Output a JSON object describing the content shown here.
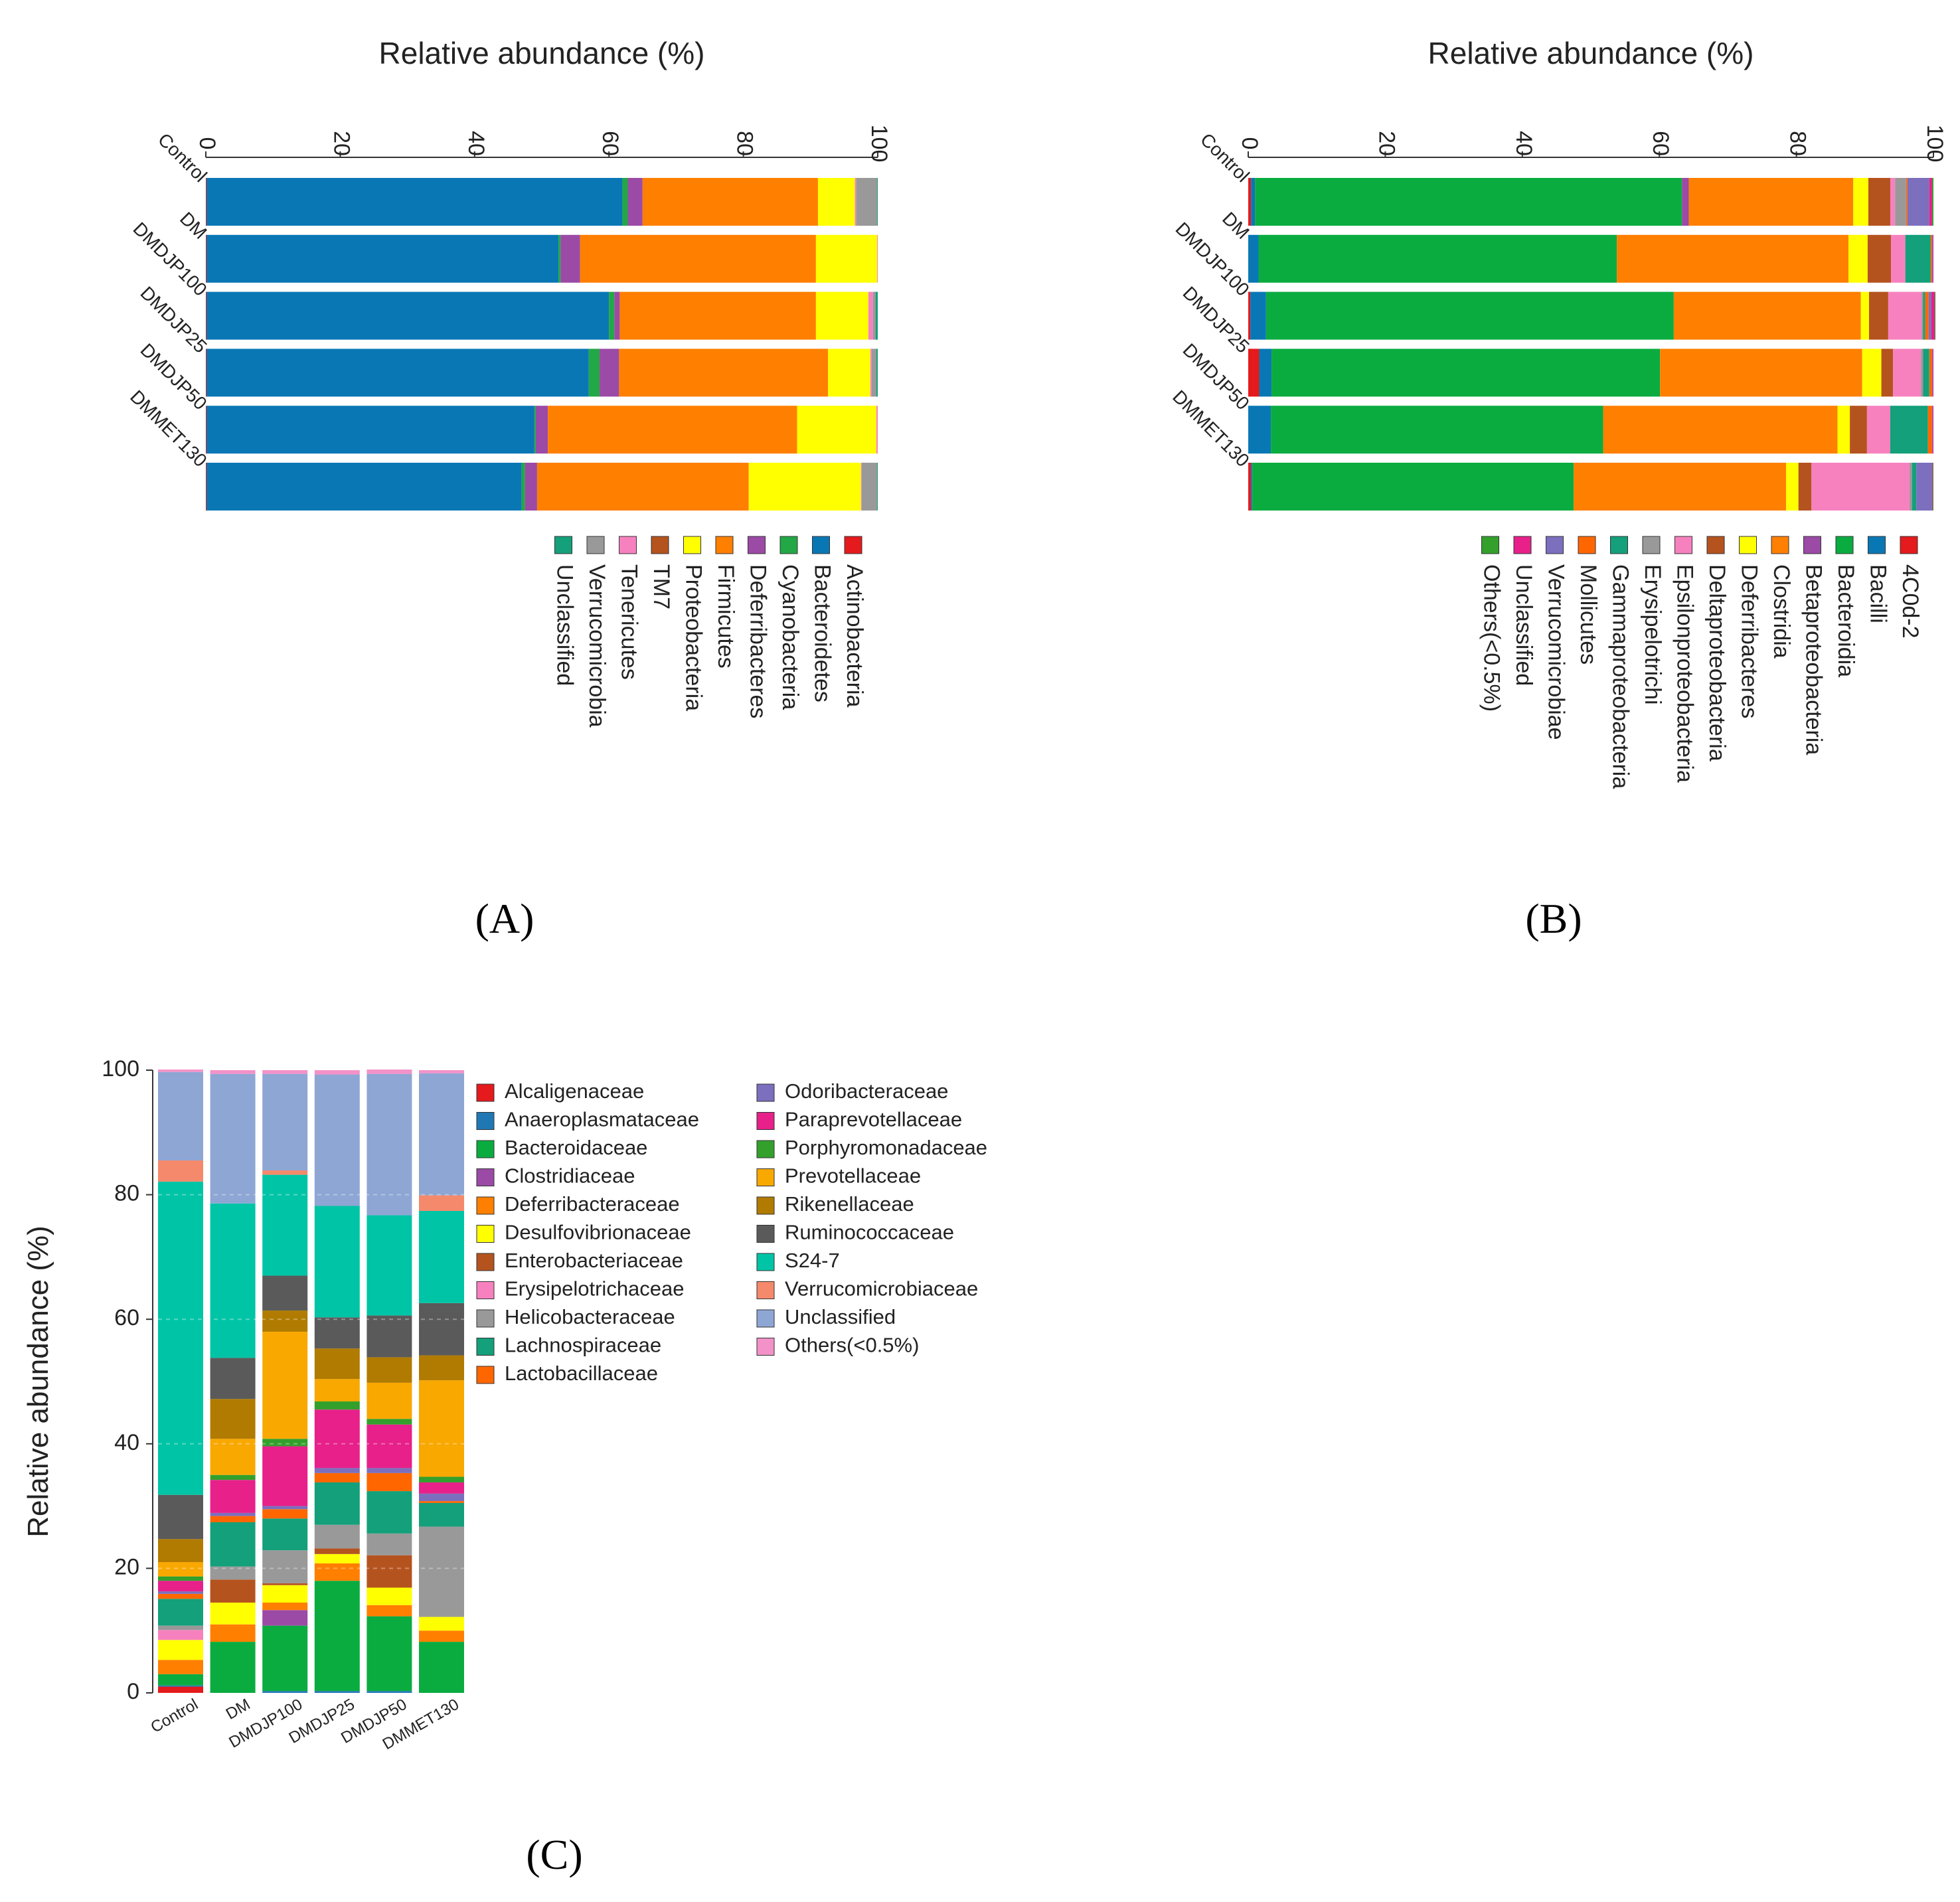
{
  "chart_data": [
    {
      "panel": "A",
      "type": "bar",
      "orientation": "horizontal-stacked",
      "axis_title": "Relative abundance (%)",
      "ticks": [
        "0",
        "20",
        "40",
        "60",
        "80",
        "100"
      ],
      "xlim": [
        0,
        100
      ],
      "categories": [
        "Control",
        "DM",
        "DMDJP100",
        "DMDJP25",
        "DMDJP50",
        "DMMET130"
      ],
      "legend_order": [
        "Actinobacteria",
        "Bacteroidetes",
        "Cyanobacteria",
        "Deferribacteres",
        "Firmicutes",
        "Proteobacteria",
        "TM7",
        "Tenericutes",
        "Verrucomicrobia",
        "Unclassified"
      ],
      "series": [
        {
          "name": "Actinobacteria",
          "color": "#e41a1c",
          "values": [
            0.1,
            0.1,
            0.1,
            0.1,
            0.1,
            0.1
          ]
        },
        {
          "name": "Bacteroidetes",
          "color": "#0a77b5",
          "values": [
            61.9,
            52.4,
            59.9,
            56.9,
            48.8,
            46.9
          ]
        },
        {
          "name": "Cyanobacteria",
          "color": "#22a844",
          "values": [
            0.8,
            0.3,
            0.8,
            1.6,
            0.2,
            0.5
          ]
        },
        {
          "name": "Deferribacteres",
          "color": "#9b4aa6",
          "values": [
            2.2,
            2.9,
            0.8,
            2.9,
            1.8,
            1.8
          ]
        },
        {
          "name": "Firmicutes",
          "color": "#ff7f00",
          "values": [
            26.1,
            35.1,
            29.2,
            31.1,
            37.1,
            31.5
          ]
        },
        {
          "name": "Proteobacteria",
          "color": "#ffff00",
          "values": [
            5.5,
            9.1,
            7.8,
            6.3,
            11.8,
            16.7
          ]
        },
        {
          "name": "TM7",
          "color": "#b5531f",
          "values": [
            0.0,
            0.0,
            0.0,
            0.0,
            0.0,
            0.0
          ]
        },
        {
          "name": "Tenericutes",
          "color": "#f781bf",
          "values": [
            0.2,
            0.1,
            0.7,
            0.2,
            0.2,
            0.1
          ]
        },
        {
          "name": "Verrucomicrobia",
          "color": "#999999",
          "values": [
            3.1,
            0.0,
            0.4,
            0.7,
            0.0,
            2.3
          ]
        },
        {
          "name": "Unclassified",
          "color": "#13a07a",
          "values": [
            0.1,
            0.0,
            0.3,
            0.2,
            0.0,
            0.1
          ]
        }
      ]
    },
    {
      "panel": "B",
      "type": "bar",
      "orientation": "horizontal-stacked",
      "axis_title": "Relative abundance (%)",
      "ticks": [
        "0",
        "20",
        "40",
        "60",
        "80",
        "100"
      ],
      "xlim": [
        0,
        100
      ],
      "categories": [
        "Control",
        "DM",
        "DMDJP100",
        "DMDJP25",
        "DMDJP50",
        "DMMET130"
      ],
      "legend_order": [
        "4C0d-2",
        "Bacilli",
        "Bacteroidia",
        "Betaproteobacteria",
        "Clostridia",
        "Deferribacteres",
        "Deltaproteobacteria",
        "Epsilonproteobacteria",
        "Erysipelotrichi",
        "Gammaproteobacteria",
        "Mollicutes",
        "Verrucomicrobiae",
        "Unclassified",
        "Others(<0.5%)"
      ],
      "series": [
        {
          "name": "4C0d-2",
          "color": "#e41a1c",
          "values": [
            0.4,
            0.0,
            0.3,
            1.6,
            0.0,
            0.4
          ]
        },
        {
          "name": "Bacilli",
          "color": "#0a77b5",
          "values": [
            0.6,
            1.5,
            2.3,
            1.8,
            3.3,
            0.2
          ]
        },
        {
          "name": "Bacteroidia",
          "color": "#0aac40",
          "values": [
            62.3,
            52.3,
            59.5,
            56.7,
            48.5,
            46.9
          ]
        },
        {
          "name": "Betaproteobacteria",
          "color": "#9b4aa6",
          "values": [
            1.0,
            0.0,
            0.0,
            0.0,
            0.0,
            0.0
          ]
        },
        {
          "name": "Clostridia",
          "color": "#ff7f00",
          "values": [
            24.0,
            33.8,
            27.3,
            29.5,
            34.2,
            31.0
          ]
        },
        {
          "name": "Deferribacteres",
          "color": "#ffff00",
          "values": [
            2.2,
            2.8,
            1.2,
            2.8,
            1.8,
            1.8
          ]
        },
        {
          "name": "Deltaproteobacteria",
          "color": "#b5531f",
          "values": [
            3.2,
            3.4,
            2.8,
            1.7,
            2.5,
            1.9
          ]
        },
        {
          "name": "Epsilonproteobacteria",
          "color": "#f781bf",
          "values": [
            0.7,
            2.1,
            4.9,
            4.1,
            3.4,
            14.3
          ]
        },
        {
          "name": "Erysipelotrichi",
          "color": "#999999",
          "values": [
            1.6,
            0.0,
            0.2,
            0.3,
            0.0,
            0.4
          ]
        },
        {
          "name": "Gammaproteobacteria",
          "color": "#13a07a",
          "values": [
            0.0,
            3.7,
            0.3,
            0.9,
            5.5,
            0.6
          ]
        },
        {
          "name": "Mollicutes",
          "color": "#ff6600",
          "values": [
            0.2,
            0.2,
            0.5,
            0.4,
            0.6,
            0.0
          ]
        },
        {
          "name": "Verrucomicrobiae",
          "color": "#7b6fbe",
          "values": [
            3.2,
            0.1,
            0.4,
            0.1,
            0.1,
            2.3
          ]
        },
        {
          "name": "Unclassified",
          "color": "#e7208a",
          "values": [
            0.4,
            0.1,
            0.5,
            0.1,
            0.1,
            0.1
          ]
        },
        {
          "name": "Others(<0.5%)",
          "color": "#33a02c",
          "values": [
            0.2,
            0.0,
            0.1,
            0.0,
            0.0,
            0.1
          ]
        }
      ]
    },
    {
      "panel": "C",
      "type": "bar",
      "orientation": "vertical-stacked",
      "ylabel": "Relative abundance (%)",
      "ticks": [
        "0",
        "20",
        "40",
        "60",
        "80",
        "100"
      ],
      "ylim": [
        0,
        100
      ],
      "categories": [
        "Control",
        "DM",
        "DMDJP100",
        "DMDJP25",
        "DMDJP50",
        "DMMET130"
      ],
      "legend_order": [
        "Alcaligenaceae",
        "Anaeroplasmataceae",
        "Bacteroidaceae",
        "Clostridiaceae",
        "Deferribacteraceae",
        "Desulfovibrionaceae",
        "Enterobacteriaceae",
        "Erysipelotrichaceae",
        "Helicobacteraceae",
        "Lachnospiraceae",
        "Lactobacillaceae",
        "Odoribacteraceae",
        "Paraprevotellaceae",
        "Porphyromonadaceae",
        "Prevotellaceae",
        "Rikenellaceae",
        "Ruminococcaceae",
        "S24-7",
        "Verrucomicrobiaceae",
        "Unclassified",
        "Others(<0.5%)"
      ],
      "series": [
        {
          "name": "Alcaligenaceae",
          "color": "#e41a1c",
          "values": [
            1.0,
            0.0,
            0.0,
            0.0,
            0.0,
            0.0
          ]
        },
        {
          "name": "Anaeroplasmataceae",
          "color": "#1f78b4",
          "values": [
            0.2,
            0.0,
            0.3,
            0.3,
            0.3,
            0.0
          ]
        },
        {
          "name": "Bacteroidaceae",
          "color": "#0aac40",
          "values": [
            1.8,
            8.2,
            10.5,
            17.7,
            12.0,
            8.2
          ]
        },
        {
          "name": "Clostridiaceae",
          "color": "#9b4aa6",
          "values": [
            0.0,
            0.0,
            2.5,
            0.0,
            0.0,
            0.0
          ]
        },
        {
          "name": "Deferribacteraceae",
          "color": "#ff7f00",
          "values": [
            2.3,
            2.8,
            1.2,
            2.8,
            1.8,
            1.8
          ]
        },
        {
          "name": "Desulfovibrionaceae",
          "color": "#ffff00",
          "values": [
            3.2,
            3.5,
            2.8,
            1.5,
            2.8,
            2.2
          ]
        },
        {
          "name": "Enterobacteriaceae",
          "color": "#b5531f",
          "values": [
            0.0,
            3.7,
            0.3,
            0.9,
            5.2,
            0.0
          ]
        },
        {
          "name": "Erysipelotrichaceae",
          "color": "#f781bf",
          "values": [
            1.6,
            0.0,
            0.0,
            0.0,
            0.0,
            0.0
          ]
        },
        {
          "name": "Helicobacteraceae",
          "color": "#999999",
          "values": [
            0.7,
            2.1,
            5.3,
            3.8,
            3.5,
            14.5
          ]
        },
        {
          "name": "Lachnospiraceae",
          "color": "#13a07a",
          "values": [
            4.3,
            7.1,
            5.1,
            6.8,
            6.8,
            3.8
          ]
        },
        {
          "name": "Lactobacillaceae",
          "color": "#ff6600",
          "values": [
            0.8,
            1.0,
            1.5,
            1.5,
            2.9,
            0.3
          ]
        },
        {
          "name": "Odoribacteraceae",
          "color": "#7b6fbe",
          "values": [
            0.4,
            0.5,
            0.5,
            0.8,
            0.8,
            1.2
          ]
        },
        {
          "name": "Paraprevotellaceae",
          "color": "#e7208a",
          "values": [
            1.7,
            5.3,
            9.6,
            9.4,
            7.0,
            1.8
          ]
        },
        {
          "name": "Porphyromonadaceae",
          "color": "#33a02c",
          "values": [
            0.7,
            0.8,
            1.2,
            1.3,
            0.9,
            0.9
          ]
        },
        {
          "name": "Prevotellaceae",
          "color": "#f9a800",
          "values": [
            2.3,
            5.8,
            17.2,
            3.6,
            5.8,
            15.5
          ]
        },
        {
          "name": "Rikenellaceae",
          "color": "#b07b00",
          "values": [
            3.7,
            6.4,
            3.4,
            4.9,
            4.1,
            4.0
          ]
        },
        {
          "name": "Ruminococcaceae",
          "color": "#5a5a5a",
          "values": [
            7.1,
            6.6,
            5.6,
            5.0,
            6.7,
            8.4
          ]
        },
        {
          "name": "S24-7",
          "color": "#00c4a6",
          "values": [
            50.3,
            24.8,
            16.2,
            17.9,
            16.1,
            14.8
          ]
        },
        {
          "name": "Verrucomicrobiaceae",
          "color": "#f4896b",
          "values": [
            3.4,
            0.0,
            0.7,
            0.0,
            0.0,
            2.5
          ]
        },
        {
          "name": "Unclassified",
          "color": "#8ea6d4",
          "values": [
            14.2,
            20.8,
            15.5,
            21.1,
            22.7,
            19.6
          ]
        },
        {
          "name": "Others(<0.5%)",
          "color": "#f292c8",
          "values": [
            0.4,
            0.6,
            0.6,
            0.7,
            0.7,
            0.5
          ]
        }
      ]
    }
  ],
  "labels": {
    "a": "(A)",
    "b": "(B)",
    "c": "(C)"
  }
}
